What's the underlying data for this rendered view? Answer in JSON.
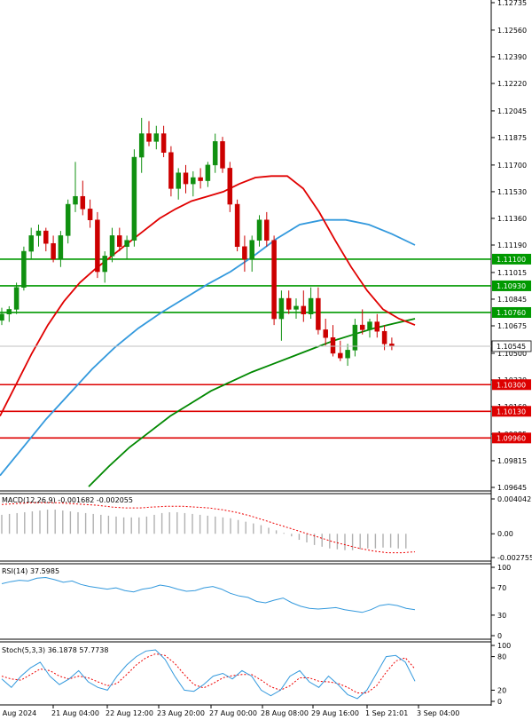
{
  "chart_data": {
    "type": "candlestick",
    "main": {
      "price_ticks": [
        "1.12735",
        "1.12560",
        "1.12390",
        "1.12220",
        "1.12045",
        "1.11875",
        "1.11700",
        "1.11530",
        "1.11360",
        "1.11190",
        "1.11015",
        "1.10845",
        "1.10675",
        "1.10500",
        "1.10330",
        "1.10160",
        "1.09985",
        "1.09815",
        "1.09645"
      ],
      "levels": [
        {
          "label": "1.11100",
          "value": 1.111,
          "color": "#009900"
        },
        {
          "label": "1.10930",
          "value": 1.1093,
          "color": "#009900"
        },
        {
          "label": "1.10760",
          "value": 1.1076,
          "color": "#009900"
        },
        {
          "label": "1.10300",
          "value": 1.103,
          "color": "#dd0000"
        },
        {
          "label": "1.10130",
          "value": 1.1013,
          "color": "#dd0000"
        },
        {
          "label": "1.09960",
          "value": 1.0996,
          "color": "#dd0000"
        }
      ],
      "current_price": {
        "label": "1.10545",
        "value": 1.10545
      },
      "candles": [
        [
          1.1071,
          1.1079,
          1.1068,
          1.1075
        ],
        [
          1.1075,
          1.108,
          1.107,
          1.1078
        ],
        [
          1.1078,
          1.1095,
          1.1075,
          1.1092
        ],
        [
          1.1092,
          1.1118,
          1.109,
          1.1115
        ],
        [
          1.1115,
          1.113,
          1.111,
          1.1125
        ],
        [
          1.1125,
          1.1132,
          1.1118,
          1.1128
        ],
        [
          1.1128,
          1.113,
          1.1115,
          1.112
        ],
        [
          1.112,
          1.1125,
          1.1108,
          1.111
        ],
        [
          1.111,
          1.1128,
          1.1105,
          1.1125
        ],
        [
          1.1125,
          1.1148,
          1.112,
          1.1145
        ],
        [
          1.1145,
          1.1172,
          1.114,
          1.115
        ],
        [
          1.115,
          1.116,
          1.1138,
          1.1142
        ],
        [
          1.1142,
          1.1148,
          1.113,
          1.1135
        ],
        [
          1.1135,
          1.114,
          1.1098,
          1.1102
        ],
        [
          1.1102,
          1.1115,
          1.1095,
          1.1112
        ],
        [
          1.1112,
          1.113,
          1.1108,
          1.1125
        ],
        [
          1.1125,
          1.113,
          1.1115,
          1.1118
        ],
        [
          1.1118,
          1.1125,
          1.111,
          1.1122
        ],
        [
          1.1122,
          1.118,
          1.1118,
          1.1175
        ],
        [
          1.1175,
          1.12,
          1.1165,
          1.119
        ],
        [
          1.119,
          1.1198,
          1.1182,
          1.1185
        ],
        [
          1.1185,
          1.1195,
          1.118,
          1.119
        ],
        [
          1.119,
          1.1195,
          1.1175,
          1.1178
        ],
        [
          1.1178,
          1.1182,
          1.115,
          1.1155
        ],
        [
          1.1155,
          1.1168,
          1.1148,
          1.1165
        ],
        [
          1.1165,
          1.117,
          1.1152,
          1.1158
        ],
        [
          1.1158,
          1.1166,
          1.115,
          1.1162
        ],
        [
          1.1162,
          1.1168,
          1.1155,
          1.116
        ],
        [
          1.116,
          1.1172,
          1.1156,
          1.117
        ],
        [
          1.117,
          1.119,
          1.1165,
          1.1185
        ],
        [
          1.1185,
          1.1188,
          1.1165,
          1.1168
        ],
        [
          1.1168,
          1.1172,
          1.114,
          1.1145
        ],
        [
          1.1145,
          1.1148,
          1.1115,
          1.1118
        ],
        [
          1.1118,
          1.1125,
          1.1102,
          1.111
        ],
        [
          1.111,
          1.1125,
          1.1102,
          1.1122
        ],
        [
          1.1122,
          1.1138,
          1.1118,
          1.1135
        ],
        [
          1.1135,
          1.114,
          1.1118,
          1.1122
        ],
        [
          1.1122,
          1.1125,
          1.1068,
          1.1072
        ],
        [
          1.1072,
          1.109,
          1.1058,
          1.1085
        ],
        [
          1.1085,
          1.109,
          1.1075,
          1.1078
        ],
        [
          1.1078,
          1.1085,
          1.1072,
          1.108
        ],
        [
          1.108,
          1.109,
          1.107,
          1.1075
        ],
        [
          1.1075,
          1.1092,
          1.1072,
          1.1085
        ],
        [
          1.1085,
          1.1092,
          1.1062,
          1.1065
        ],
        [
          1.1065,
          1.1072,
          1.1055,
          1.106
        ],
        [
          1.106,
          1.1068,
          1.1048,
          1.105
        ],
        [
          1.105,
          1.1058,
          1.1045,
          1.1047
        ],
        [
          1.1047,
          1.1056,
          1.1042,
          1.1052
        ],
        [
          1.1052,
          1.1072,
          1.1048,
          1.1068
        ],
        [
          1.1068,
          1.1078,
          1.1062,
          1.1065
        ],
        [
          1.1065,
          1.1072,
          1.106,
          1.107
        ],
        [
          1.107,
          1.1075,
          1.106,
          1.1064
        ],
        [
          1.1064,
          1.1068,
          1.1052,
          1.1056
        ],
        [
          1.1056,
          1.106,
          1.1052,
          1.10545
        ]
      ],
      "ma_red": [
        1.101,
        1.103,
        1.105,
        1.1068,
        1.1083,
        1.1095,
        1.1104,
        1.1112,
        1.112,
        1.1128,
        1.1136,
        1.1142,
        1.1147,
        1.115,
        1.1153,
        1.1158,
        1.1162,
        1.1163,
        1.1163,
        1.1155,
        1.114,
        1.1122,
        1.1105,
        1.109,
        1.1078,
        1.1072,
        1.1068
      ],
      "ma_blue": [
        1.0972,
        1.099,
        1.1008,
        1.1024,
        1.104,
        1.1054,
        1.1066,
        1.1076,
        1.1085,
        1.1094,
        1.1102,
        1.1112,
        1.1123,
        1.1132,
        1.1135,
        1.1135,
        1.1132,
        1.1126,
        1.1119
      ],
      "ma_green": [
        1.0965,
        1.0978,
        1.099,
        1.1,
        1.101,
        1.1018,
        1.1026,
        1.1032,
        1.1038,
        1.1043,
        1.1048,
        1.1053,
        1.1058,
        1.1062,
        1.1066,
        1.1069,
        1.1072
      ]
    },
    "macd": {
      "label": "MACD(12,26,9) -0.001682 -0.002055",
      "ticks": [
        "0.004042",
        "0.00",
        "-0.002755"
      ],
      "hist": [
        0.0022,
        0.0023,
        0.0024,
        0.0025,
        0.0026,
        0.0027,
        0.0028,
        0.0028,
        0.0027,
        0.0026,
        0.0025,
        0.0024,
        0.0023,
        0.0022,
        0.0021,
        0.002,
        0.0019,
        0.0019,
        0.0019,
        0.002,
        0.0022,
        0.0024,
        0.0025,
        0.0025,
        0.0024,
        0.0023,
        0.0022,
        0.0021,
        0.002,
        0.0019,
        0.0018,
        0.0016,
        0.0014,
        0.0012,
        0.001,
        0.0007,
        0.0004,
        0.0001,
        -0.0003,
        -0.0007,
        -0.001,
        -0.0013,
        -0.0015,
        -0.0017,
        -0.0018,
        -0.0019,
        -0.0019,
        -0.0018,
        -0.0017,
        -0.0017,
        -0.0016,
        -0.0016,
        -0.0017,
        -0.0017
      ],
      "signal": [
        0.0034,
        0.0035,
        0.0036,
        0.0036,
        0.0036,
        0.0035,
        0.0034,
        0.0033,
        0.0031,
        0.003,
        0.003,
        0.0031,
        0.0032,
        0.0032,
        0.0031,
        0.003,
        0.0028,
        0.0025,
        0.0021,
        0.0016,
        0.0011,
        0.0006,
        0.0001,
        -0.0004,
        -0.0009,
        -0.0013,
        -0.0017,
        -0.002,
        -0.0022,
        -0.0022,
        -0.0021
      ]
    },
    "rsi": {
      "label": "RSI(14) 37.5985",
      "ticks": [
        "100",
        "70",
        "30",
        "0"
      ],
      "values": [
        76,
        79,
        81,
        80,
        84,
        85,
        82,
        78,
        80,
        75,
        72,
        70,
        68,
        70,
        66,
        64,
        68,
        70,
        74,
        72,
        68,
        65,
        66,
        70,
        72,
        68,
        62,
        58,
        56,
        50,
        48,
        52,
        55,
        48,
        43,
        40,
        39,
        40,
        41,
        38,
        36,
        34,
        38,
        44,
        46,
        44,
        40,
        38
      ]
    },
    "stoch": {
      "label": "Stoch(5,3,3) 36.1878 57.7738",
      "ticks": [
        "100",
        "80",
        "20",
        "0"
      ],
      "k": [
        40,
        25,
        45,
        60,
        70,
        45,
        30,
        40,
        55,
        35,
        25,
        20,
        45,
        65,
        80,
        90,
        92,
        75,
        45,
        20,
        18,
        30,
        45,
        50,
        40,
        55,
        45,
        20,
        10,
        20,
        45,
        55,
        35,
        25,
        45,
        30,
        12,
        5,
        20,
        50,
        80,
        82,
        70,
        36
      ],
      "d": [
        45,
        40,
        38,
        48,
        58,
        55,
        45,
        40,
        45,
        42,
        35,
        28,
        32,
        48,
        65,
        78,
        85,
        82,
        68,
        48,
        30,
        24,
        32,
        42,
        46,
        48,
        48,
        38,
        26,
        20,
        28,
        42,
        42,
        36,
        35,
        32,
        25,
        15,
        15,
        28,
        52,
        72,
        78,
        58
      ]
    },
    "x_labels": [
      {
        "label": "20 Aug 2024",
        "candle": 0
      },
      {
        "label": "21 Aug 04:00",
        "candle": 9
      },
      {
        "label": "22 Aug 12:00",
        "candle": 18
      },
      {
        "label": "23 Aug 20:00",
        "candle": 27
      },
      {
        "label": "27 Aug 00:00",
        "candle": 36
      },
      {
        "label": "28 Aug 08:00",
        "candle": 44
      },
      {
        "label": "29 Aug 16:00",
        "candle": 53
      },
      {
        "label": "1 Sep 21:01",
        "candle": 62
      },
      {
        "label": "3 Sep 04:00",
        "candle": 70
      }
    ]
  },
  "colors": {
    "bull": "#109010",
    "bear": "#cc0000",
    "ma_red": "#e00000",
    "ma_blue": "#3399dd",
    "ma_green": "#008800",
    "level_green": "#009900",
    "level_red": "#dd0000",
    "macd_hist": "#b0b0b0",
    "macd_signal": "#ee0000",
    "rsi_line": "#3399dd",
    "stoch_k": "#3399dd",
    "stoch_d": "#ee0000"
  }
}
